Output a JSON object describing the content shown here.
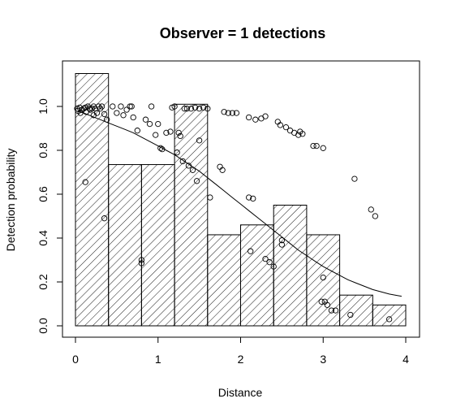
{
  "chart_data": {
    "type": "bar",
    "title": "Observer =  1  detections",
    "xlabel": "Distance",
    "ylabel": "Detection probability",
    "xlim": [
      0,
      4
    ],
    "ylim": [
      0,
      1.15
    ],
    "x_ticks": [
      0,
      1,
      2,
      3,
      4
    ],
    "y_ticks": [
      0.0,
      0.2,
      0.4,
      0.6,
      0.8,
      1.0
    ],
    "x_tick_labels": [
      "0",
      "1",
      "2",
      "3",
      "4"
    ],
    "y_tick_labels": [
      "0.0",
      "0.2",
      "0.4",
      "0.6",
      "0.8",
      "1.0"
    ],
    "grid": false,
    "legend": "none",
    "bars": [
      {
        "x0": 0.0,
        "x1": 0.4,
        "value": 1.15
      },
      {
        "x0": 0.4,
        "x1": 0.8,
        "value": 0.735
      },
      {
        "x0": 0.8,
        "x1": 1.2,
        "value": 0.735
      },
      {
        "x0": 1.2,
        "x1": 1.6,
        "value": 1.01
      },
      {
        "x0": 1.6,
        "x1": 2.0,
        "value": 0.415
      },
      {
        "x0": 2.0,
        "x1": 2.4,
        "value": 0.46
      },
      {
        "x0": 2.4,
        "x1": 2.8,
        "value": 0.55
      },
      {
        "x0": 2.8,
        "x1": 3.2,
        "value": 0.415
      },
      {
        "x0": 3.2,
        "x1": 3.6,
        "value": 0.14
      },
      {
        "x0": 3.6,
        "x1": 4.0,
        "value": 0.095
      }
    ],
    "curve": {
      "x": [
        0.0,
        0.1,
        0.2,
        0.3,
        0.4,
        0.5,
        0.6,
        0.7,
        0.8,
        0.9,
        1.0,
        1.1,
        1.2,
        1.3,
        1.4,
        1.5,
        1.6,
        1.7,
        1.8,
        1.9,
        2.0,
        2.1,
        2.2,
        2.3,
        2.4,
        2.5,
        2.6,
        2.7,
        2.8,
        2.9,
        3.0,
        3.1,
        3.2,
        3.3,
        3.4,
        3.5,
        3.6,
        3.7,
        3.8,
        3.9,
        3.95
      ],
      "y": [
        0.98,
        0.97,
        0.955,
        0.94,
        0.925,
        0.91,
        0.895,
        0.88,
        0.86,
        0.84,
        0.82,
        0.8,
        0.78,
        0.755,
        0.73,
        0.705,
        0.675,
        0.645,
        0.615,
        0.585,
        0.555,
        0.525,
        0.495,
        0.465,
        0.435,
        0.405,
        0.375,
        0.345,
        0.32,
        0.295,
        0.27,
        0.25,
        0.23,
        0.21,
        0.195,
        0.18,
        0.165,
        0.155,
        0.145,
        0.138,
        0.135
      ]
    },
    "points": [
      {
        "x": 0.02,
        "y": 0.99
      },
      {
        "x": 0.03,
        "y": 0.98
      },
      {
        "x": 0.05,
        "y": 0.995
      },
      {
        "x": 0.06,
        "y": 0.97
      },
      {
        "x": 0.08,
        "y": 0.985
      },
      {
        "x": 0.1,
        "y": 0.99
      },
      {
        "x": 0.12,
        "y": 0.995
      },
      {
        "x": 0.13,
        "y": 0.975
      },
      {
        "x": 0.15,
        "y": 1.0
      },
      {
        "x": 0.17,
        "y": 0.99
      },
      {
        "x": 0.18,
        "y": 0.985
      },
      {
        "x": 0.2,
        "y": 0.99
      },
      {
        "x": 0.22,
        "y": 1.0
      },
      {
        "x": 0.24,
        "y": 0.99
      },
      {
        "x": 0.26,
        "y": 0.97
      },
      {
        "x": 0.28,
        "y": 1.0
      },
      {
        "x": 0.3,
        "y": 0.99
      },
      {
        "x": 0.32,
        "y": 1.0
      },
      {
        "x": 0.35,
        "y": 0.965
      },
      {
        "x": 0.38,
        "y": 0.94
      },
      {
        "x": 0.22,
        "y": 0.96
      },
      {
        "x": 0.12,
        "y": 0.655
      },
      {
        "x": 0.35,
        "y": 0.49
      },
      {
        "x": 0.45,
        "y": 1.0
      },
      {
        "x": 0.5,
        "y": 0.97
      },
      {
        "x": 0.55,
        "y": 1.0
      },
      {
        "x": 0.58,
        "y": 0.96
      },
      {
        "x": 0.62,
        "y": 0.985
      },
      {
        "x": 0.66,
        "y": 1.0
      },
      {
        "x": 0.68,
        "y": 1.0
      },
      {
        "x": 0.7,
        "y": 0.95
      },
      {
        "x": 0.75,
        "y": 0.89
      },
      {
        "x": 0.8,
        "y": 0.3
      },
      {
        "x": 0.8,
        "y": 0.285
      },
      {
        "x": 0.85,
        "y": 0.94
      },
      {
        "x": 0.9,
        "y": 0.92
      },
      {
        "x": 0.92,
        "y": 1.0
      },
      {
        "x": 0.97,
        "y": 0.87
      },
      {
        "x": 1.0,
        "y": 0.92
      },
      {
        "x": 1.03,
        "y": 0.81
      },
      {
        "x": 1.05,
        "y": 0.805
      },
      {
        "x": 1.1,
        "y": 0.88
      },
      {
        "x": 1.15,
        "y": 0.885
      },
      {
        "x": 1.17,
        "y": 0.995
      },
      {
        "x": 1.2,
        "y": 1.0
      },
      {
        "x": 1.23,
        "y": 0.79
      },
      {
        "x": 1.25,
        "y": 0.88
      },
      {
        "x": 1.27,
        "y": 0.865
      },
      {
        "x": 1.3,
        "y": 0.75
      },
      {
        "x": 1.32,
        "y": 0.99
      },
      {
        "x": 1.35,
        "y": 0.99
      },
      {
        "x": 1.37,
        "y": 0.73
      },
      {
        "x": 1.4,
        "y": 0.99
      },
      {
        "x": 1.42,
        "y": 0.71
      },
      {
        "x": 1.45,
        "y": 0.995
      },
      {
        "x": 1.47,
        "y": 0.66
      },
      {
        "x": 1.5,
        "y": 0.99
      },
      {
        "x": 1.5,
        "y": 0.845
      },
      {
        "x": 1.55,
        "y": 0.995
      },
      {
        "x": 1.6,
        "y": 0.99
      },
      {
        "x": 1.63,
        "y": 0.585
      },
      {
        "x": 1.75,
        "y": 0.725
      },
      {
        "x": 1.78,
        "y": 0.71
      },
      {
        "x": 1.8,
        "y": 0.975
      },
      {
        "x": 1.85,
        "y": 0.97
      },
      {
        "x": 1.9,
        "y": 0.97
      },
      {
        "x": 1.95,
        "y": 0.97
      },
      {
        "x": 2.1,
        "y": 0.585
      },
      {
        "x": 2.12,
        "y": 0.34
      },
      {
        "x": 2.15,
        "y": 0.58
      },
      {
        "x": 2.1,
        "y": 0.95
      },
      {
        "x": 2.18,
        "y": 0.94
      },
      {
        "x": 2.25,
        "y": 0.945
      },
      {
        "x": 2.3,
        "y": 0.955
      },
      {
        "x": 2.3,
        "y": 0.305
      },
      {
        "x": 2.35,
        "y": 0.29
      },
      {
        "x": 2.4,
        "y": 0.27
      },
      {
        "x": 2.45,
        "y": 0.93
      },
      {
        "x": 2.48,
        "y": 0.915
      },
      {
        "x": 2.5,
        "y": 0.39
      },
      {
        "x": 2.5,
        "y": 0.37
      },
      {
        "x": 2.55,
        "y": 0.905
      },
      {
        "x": 2.6,
        "y": 0.89
      },
      {
        "x": 2.65,
        "y": 0.88
      },
      {
        "x": 2.7,
        "y": 0.87
      },
      {
        "x": 2.72,
        "y": 0.885
      },
      {
        "x": 2.75,
        "y": 0.875
      },
      {
        "x": 2.88,
        "y": 0.82
      },
      {
        "x": 2.92,
        "y": 0.82
      },
      {
        "x": 3.0,
        "y": 0.81
      },
      {
        "x": 2.98,
        "y": 0.11
      },
      {
        "x": 3.02,
        "y": 0.11
      },
      {
        "x": 3.0,
        "y": 0.22
      },
      {
        "x": 3.05,
        "y": 0.095
      },
      {
        "x": 3.1,
        "y": 0.07
      },
      {
        "x": 3.15,
        "y": 0.07
      },
      {
        "x": 3.33,
        "y": 0.05
      },
      {
        "x": 3.38,
        "y": 0.67
      },
      {
        "x": 3.58,
        "y": 0.53
      },
      {
        "x": 3.63,
        "y": 0.5
      },
      {
        "x": 3.8,
        "y": 0.03
      }
    ]
  }
}
